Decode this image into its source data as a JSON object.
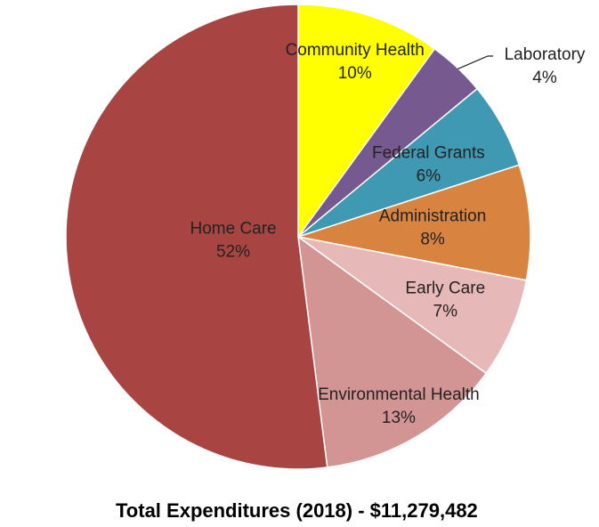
{
  "chart_data": {
    "type": "pie",
    "title": "Total Expenditures (2018) - $11,279,482",
    "categories": [
      "Community Health",
      "Laboratory",
      "Federal Grants",
      "Administration",
      "Early Care",
      "Environmental Health",
      "Home Care"
    ],
    "values": [
      10,
      4,
      6,
      8,
      7,
      13,
      52
    ],
    "value_labels": [
      "10%",
      "4%",
      "6%",
      "8%",
      "7%",
      "13%",
      "52%"
    ],
    "colors": [
      "#ffff00",
      "#76598f",
      "#4099b2",
      "#d98340",
      "#e6b9b8",
      "#d39494",
      "#a84543"
    ]
  }
}
